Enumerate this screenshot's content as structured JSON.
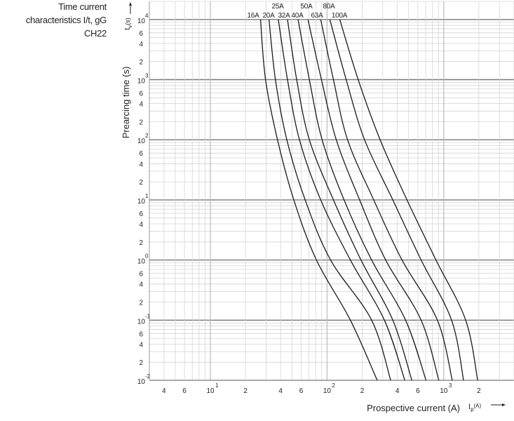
{
  "title_lines": [
    "Time current",
    "characteristics I/t, gG",
    "CH22"
  ],
  "chart_data": {
    "type": "line",
    "xscale": "log",
    "yscale": "log",
    "xlim": [
      3,
      4000
    ],
    "ylim": [
      0.01,
      20000
    ],
    "grid": true,
    "ylabel": "Prearcing time (s)",
    "ylabel_symbol": "t",
    "ylabel_symbol_sub": "v",
    "ylabel_unit": "(s)",
    "xlabel": "Prospective current (A)",
    "xlabel_symbol": "I",
    "xlabel_symbol_sub": "p",
    "xlabel_unit": "(A)",
    "y_ticks": [
      {
        "v": 10000,
        "base": "10",
        "exp": "4"
      },
      {
        "v": 6000,
        "label": "6"
      },
      {
        "v": 4000,
        "label": "4"
      },
      {
        "v": 2000,
        "label": "2"
      },
      {
        "v": 1000,
        "base": "10",
        "exp": "3"
      },
      {
        "v": 600,
        "label": "6"
      },
      {
        "v": 400,
        "label": "4"
      },
      {
        "v": 200,
        "label": "2"
      },
      {
        "v": 100,
        "base": "10",
        "exp": "2"
      },
      {
        "v": 60,
        "label": "6"
      },
      {
        "v": 40,
        "label": "4"
      },
      {
        "v": 20,
        "label": "2"
      },
      {
        "v": 10,
        "base": "10",
        "exp": "1"
      },
      {
        "v": 6,
        "label": "6"
      },
      {
        "v": 4,
        "label": "4"
      },
      {
        "v": 2,
        "label": "2"
      },
      {
        "v": 1,
        "base": "10",
        "exp": "0"
      },
      {
        "v": 0.6,
        "label": "6"
      },
      {
        "v": 0.4,
        "label": "4"
      },
      {
        "v": 0.2,
        "label": "2"
      },
      {
        "v": 0.1,
        "base": "10",
        "exp": "-1"
      },
      {
        "v": 0.06,
        "label": "6"
      },
      {
        "v": 0.04,
        "label": "4"
      },
      {
        "v": 0.02,
        "label": "2"
      },
      {
        "v": 0.01,
        "base": "10",
        "exp": "-2"
      }
    ],
    "x_ticks": [
      {
        "v": 4,
        "label": "4"
      },
      {
        "v": 6,
        "label": "6"
      },
      {
        "v": 10,
        "base": "10",
        "exp": "1"
      },
      {
        "v": 20,
        "label": "2"
      },
      {
        "v": 40,
        "label": "4"
      },
      {
        "v": 60,
        "label": "6"
      },
      {
        "v": 100,
        "base": "10",
        "exp": "2"
      },
      {
        "v": 200,
        "label": "2"
      },
      {
        "v": 400,
        "label": "4"
      },
      {
        "v": 600,
        "label": "6"
      },
      {
        "v": 1000,
        "base": "10",
        "exp": "3"
      },
      {
        "v": 2000,
        "label": "2"
      }
    ],
    "y_points": [
      10000,
      1000,
      100,
      10,
      1,
      0.1,
      0.01
    ],
    "series": [
      {
        "name": "16A",
        "x": [
          26.9,
          29.7,
          37.6,
          51.9,
          81.1,
          158.5,
          269
        ]
      },
      {
        "name": "20A",
        "x": [
          31.8,
          36.1,
          45.2,
          64.9,
          107.2,
          241,
          351
        ]
      },
      {
        "name": "25A",
        "x": [
          38.2,
          45.8,
          58.0,
          88.2,
          158.5,
          310,
          464
        ]
      },
      {
        "name": "32A",
        "x": [
          45.8,
          54.9,
          70.5,
          113.4,
          195.4,
          366,
          533
        ]
      },
      {
        "name": "40A",
        "x": [
          56.4,
          70.5,
          90.7,
          139.8,
          241,
          471,
          705
        ]
      },
      {
        "name": "50A",
        "x": [
          68.6,
          89.5,
          119.9,
          190.1,
          318,
          640,
          907
        ]
      },
      {
        "name": "63A",
        "x": [
          88.2,
          113.4,
          149.9,
          251,
          439,
          882,
          1183
        ]
      },
      {
        "name": "80A",
        "x": [
          105.7,
          145.8,
          209.6,
          366,
          640,
          1167,
          1479
        ]
      },
      {
        "name": "100A",
        "x": [
          128.5,
          184.8,
          285,
          484,
          858,
          1542,
          1954
        ]
      }
    ],
    "colors": {
      "curve": "#1a1a1a",
      "major_grid": "#777777",
      "minor_grid": "#d4d4d4"
    }
  }
}
